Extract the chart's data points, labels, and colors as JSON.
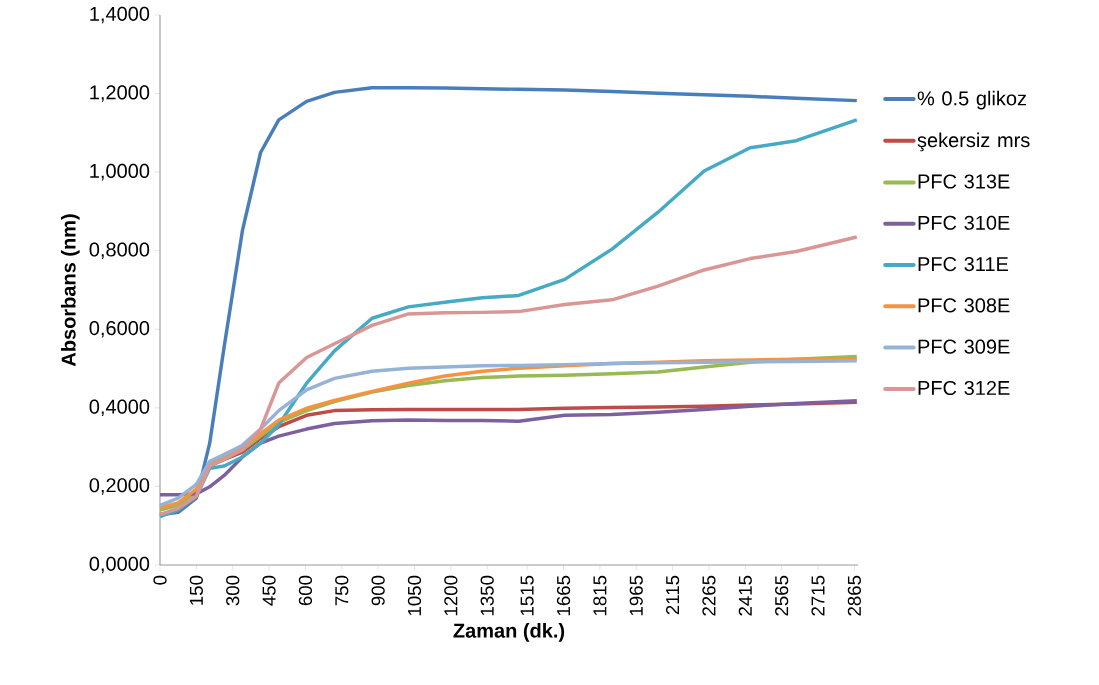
{
  "chart_data": {
    "type": "line",
    "xlabel": "Zaman (dk.)",
    "ylabel": "Absorbans (nm)",
    "x": [
      0,
      75,
      150,
      205,
      265,
      340,
      415,
      490,
      605,
      720,
      875,
      1025,
      1175,
      1330,
      1480,
      1670,
      1865,
      2055,
      2245,
      2435,
      2625,
      2875
    ],
    "series": [
      {
        "name": "% 0.5 glikoz",
        "color": "#4a7ebb",
        "values": [
          0.128,
          0.134,
          0.17,
          0.31,
          0.557,
          0.851,
          1.05,
          1.133,
          1.18,
          1.203,
          1.215,
          1.215,
          1.214,
          1.212,
          1.211,
          1.209,
          1.205,
          1.201,
          1.197,
          1.193,
          1.188,
          1.182
        ]
      },
      {
        "name": "şekersiz mrs",
        "color": "#be4b48",
        "values": [
          0.128,
          0.14,
          0.175,
          0.252,
          0.269,
          0.287,
          0.322,
          0.352,
          0.381,
          0.393,
          0.395,
          0.396,
          0.396,
          0.396,
          0.396,
          0.399,
          0.401,
          0.402,
          0.404,
          0.407,
          0.41,
          0.414
        ]
      },
      {
        "name": "PFC 313E",
        "color": "#98b954",
        "values": [
          0.14,
          0.152,
          0.187,
          0.258,
          0.275,
          0.293,
          0.328,
          0.363,
          0.393,
          0.416,
          0.44,
          0.457,
          0.469,
          0.477,
          0.481,
          0.483,
          0.487,
          0.491,
          0.504,
          0.516,
          0.524,
          0.531
        ]
      },
      {
        "name": "PFC 310E",
        "color": "#7d60a0",
        "values": [
          0.179,
          0.179,
          0.181,
          0.199,
          0.228,
          0.275,
          0.31,
          0.328,
          0.346,
          0.36,
          0.367,
          0.369,
          0.368,
          0.368,
          0.366,
          0.381,
          0.383,
          0.389,
          0.396,
          0.404,
          0.411,
          0.418
        ]
      },
      {
        "name": "PFC 311E",
        "color": "#46aac5",
        "values": [
          0.123,
          0.14,
          0.175,
          0.246,
          0.252,
          0.275,
          0.31,
          0.357,
          0.463,
          0.545,
          0.628,
          0.657,
          0.669,
          0.68,
          0.686,
          0.727,
          0.804,
          0.898,
          1.003,
          1.062,
          1.08,
          1.133
        ]
      },
      {
        "name": "PFC 308E",
        "color": "#f69240",
        "values": [
          0.146,
          0.158,
          0.193,
          0.261,
          0.281,
          0.299,
          0.334,
          0.369,
          0.399,
          0.419,
          0.442,
          0.463,
          0.481,
          0.493,
          0.501,
          0.507,
          0.513,
          0.516,
          0.52,
          0.522,
          0.524,
          0.524
        ]
      },
      {
        "name": "PFC 309E",
        "color": "#95b3d7",
        "values": [
          0.152,
          0.17,
          0.205,
          0.264,
          0.281,
          0.305,
          0.346,
          0.393,
          0.446,
          0.475,
          0.493,
          0.501,
          0.504,
          0.507,
          0.508,
          0.51,
          0.513,
          0.515,
          0.516,
          0.517,
          0.518,
          0.52
        ]
      },
      {
        "name": "PFC 312E",
        "color": "#d99694",
        "values": [
          0.128,
          0.144,
          0.175,
          0.252,
          0.269,
          0.293,
          0.346,
          0.463,
          0.528,
          0.563,
          0.61,
          0.639,
          0.642,
          0.643,
          0.645,
          0.663,
          0.675,
          0.71,
          0.751,
          0.78,
          0.798,
          0.835
        ]
      }
    ],
    "xlim": [
      0,
      2880
    ],
    "xticks": [
      0,
      150,
      300,
      450,
      600,
      750,
      900,
      1050,
      1200,
      1350,
      1515,
      1665,
      1815,
      1965,
      2115,
      2265,
      2415,
      2565,
      2715,
      2865
    ],
    "ylim": [
      0,
      1.4
    ],
    "yticks": [
      {
        "value": 0,
        "label": "0,0000"
      },
      {
        "value": 0.2,
        "label": "0,2000"
      },
      {
        "value": 0.4,
        "label": "0,4000"
      },
      {
        "value": 0.6,
        "label": "0,6000"
      },
      {
        "value": 0.8,
        "label": "0,8000"
      },
      {
        "value": 1.0,
        "label": "1,0000"
      },
      {
        "value": 1.2,
        "label": "1,2000"
      },
      {
        "value": 1.4,
        "label": "1,4000"
      }
    ],
    "grid": false,
    "legend": "right",
    "marker": "none",
    "line_style": "solid"
  }
}
